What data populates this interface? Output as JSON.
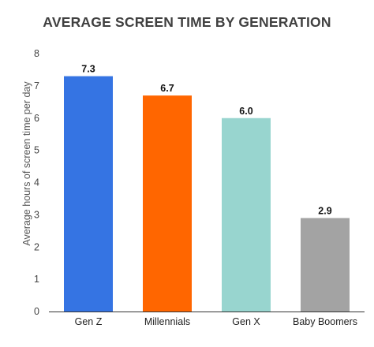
{
  "chart_data": {
    "type": "bar",
    "title": "AVERAGE SCREEN TIME BY GENERATION",
    "xlabel": "",
    "ylabel": "Average hours of screen time per day",
    "categories": [
      "Gen Z",
      "Millennials",
      "Gen X",
      "Baby Boomers"
    ],
    "values": [
      7.3,
      6.7,
      6.0,
      2.9
    ],
    "data_labels": [
      "7.3",
      "6.7",
      "6.0",
      "2.9"
    ],
    "colors": [
      "#3574E3",
      "#FF6600",
      "#98D5CF",
      "#A3A3A3"
    ],
    "ylim": [
      0,
      8
    ],
    "yticks": [
      0,
      1,
      2,
      3,
      4,
      5,
      6,
      7,
      8
    ],
    "grid": false,
    "legend": "none"
  }
}
